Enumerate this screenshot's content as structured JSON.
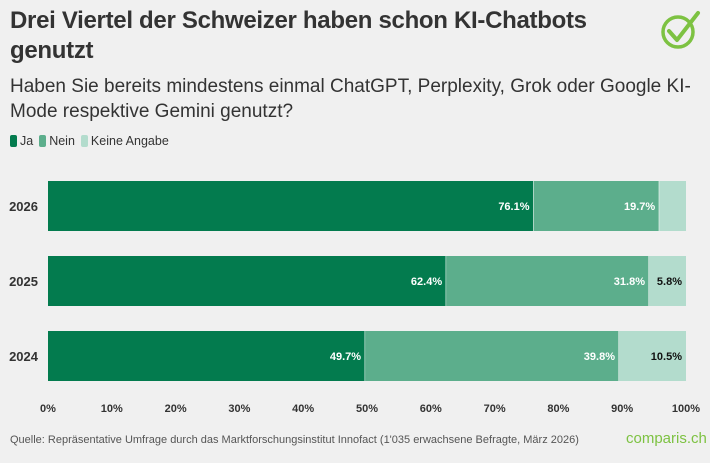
{
  "title": "Drei Viertel der Schweizer haben schon KI-Chatbots genutzt",
  "subtitle": "Haben Sie bereits mindestens einmal ChatGPT, Perplexity, Grok oder Google KI-Mode respektive Gemini genutzt?",
  "source": "Quelle: Repräsentative Umfrage durch das Marktforschungsinstitut Innofact (1'035 erwachsene Befragte, März 2026)",
  "brand": "comparis.ch",
  "logo_icon": "check-circle-icon",
  "chart_data": {
    "type": "bar",
    "orientation": "horizontal",
    "stacked": true,
    "categories": [
      "2026",
      "2025",
      "2024"
    ],
    "series": [
      {
        "name": "Ja",
        "color": "#037b4e",
        "values": [
          76.1,
          62.4,
          49.7
        ],
        "labels": [
          "76.1%",
          "62.4%",
          "49.7%"
        ]
      },
      {
        "name": "Nein",
        "color": "#5cae8c",
        "values": [
          19.7,
          31.8,
          39.8
        ],
        "labels": [
          "19.7%",
          "31.8%",
          "39.8%"
        ]
      },
      {
        "name": "Keine Angabe",
        "color": "#b3dccd",
        "values": [
          4.2,
          5.8,
          10.5
        ],
        "labels": [
          "",
          "5.8%",
          "10.5%"
        ]
      }
    ],
    "xlim": [
      0,
      100
    ],
    "xticks": [
      "0%",
      "10%",
      "20%",
      "30%",
      "40%",
      "50%",
      "60%",
      "70%",
      "80%",
      "90%",
      "100%"
    ],
    "legend": "top-left",
    "grid": false
  }
}
